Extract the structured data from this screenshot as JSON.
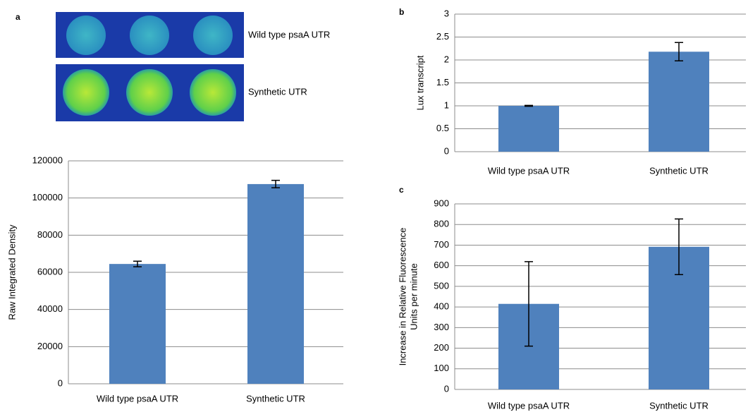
{
  "panel_labels": [
    "a",
    "b",
    "c"
  ],
  "image_labels": [
    "Wild type psaA UTR",
    "Synthetic UTR"
  ],
  "chart_data": [
    {
      "type": "bar",
      "ylabel": [
        "Raw Integrated Density"
      ],
      "categories": [
        "Wild type psaA UTR",
        "Synthetic UTR"
      ],
      "values": [
        64500,
        107500
      ],
      "errors": [
        1500,
        2000
      ],
      "color": "#4f81bd",
      "ylim": [
        0,
        120000
      ],
      "yticks": [
        0,
        20000,
        40000,
        60000,
        80000,
        100000,
        120000
      ],
      "grid": true
    },
    {
      "type": "bar",
      "ylabel": [
        "Lux transcript"
      ],
      "categories": [
        "Wild type psaA UTR",
        "Synthetic UTR"
      ],
      "values": [
        1.0,
        2.18
      ],
      "errors": [
        0.01,
        0.2
      ],
      "color": "#4f81bd",
      "ylim": [
        0,
        3
      ],
      "yticks": [
        0,
        0.5,
        1,
        1.5,
        2,
        2.5,
        3
      ],
      "grid": true
    },
    {
      "type": "bar",
      "ylabel": [
        "Increase in Relative Fluorescence",
        "Units per minute"
      ],
      "categories": [
        "Wild type psaA UTR",
        "Synthetic UTR"
      ],
      "values": [
        415,
        692
      ],
      "errors": [
        205,
        135
      ],
      "color": "#4f81bd",
      "ylim": [
        0,
        900
      ],
      "yticks": [
        0,
        100,
        200,
        300,
        400,
        500,
        600,
        700,
        800,
        900
      ],
      "grid": true
    }
  ]
}
